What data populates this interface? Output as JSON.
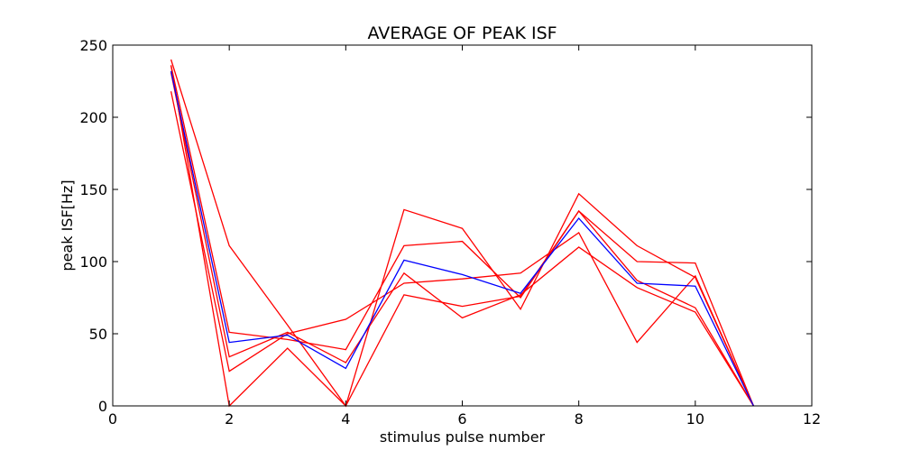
{
  "chart_data": {
    "type": "line",
    "title": "AVERAGE OF PEAK ISF",
    "xlabel": "stimulus pulse number",
    "ylabel": "peak ISF[Hz]",
    "xlim": [
      0,
      12
    ],
    "ylim": [
      0,
      250
    ],
    "xticks": [
      "0",
      "2",
      "4",
      "6",
      "8",
      "10",
      "12"
    ],
    "yticks": [
      "0",
      "50",
      "100",
      "150",
      "200",
      "250"
    ],
    "grid": false,
    "legend": "none",
    "x": [
      1,
      2,
      3,
      4,
      5,
      6,
      7,
      8,
      9,
      10,
      11
    ],
    "series": [
      {
        "color": "#ff0000",
        "values": [
          240,
          111,
          56,
          0,
          136,
          123,
          67,
          147,
          111,
          89,
          0
        ]
      },
      {
        "color": "#ff0000",
        "values": [
          236,
          51,
          46,
          39,
          111,
          114,
          75,
          135,
          100,
          99,
          0
        ]
      },
      {
        "color": "#ff0000",
        "values": [
          231,
          34,
          51,
          30,
          92,
          61,
          77,
          110,
          82,
          65,
          0
        ]
      },
      {
        "color": "#ff0000",
        "values": [
          218,
          24,
          50,
          60,
          85,
          88,
          92,
          120,
          44,
          90,
          0
        ]
      },
      {
        "color": "#ff0000",
        "values": [
          236,
          0,
          40,
          0,
          77,
          69,
          76,
          135,
          87,
          68,
          0
        ]
      },
      {
        "color": "#0000ff",
        "values": [
          232,
          44,
          49,
          26,
          101,
          91,
          78,
          130,
          85,
          83,
          0
        ]
      }
    ]
  }
}
